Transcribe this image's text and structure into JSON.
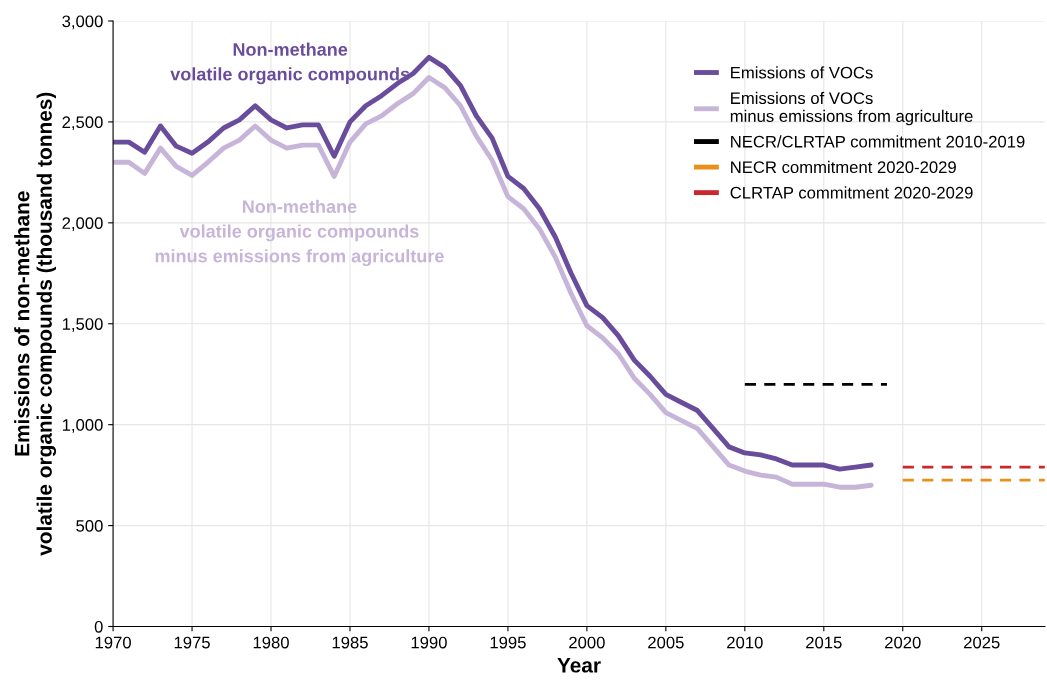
{
  "chart_data": {
    "type": "line",
    "xlabel": "Year",
    "ylabel": "Emissions of non-methane\nvolatile organic compounds (thousand tonnes)",
    "x": [
      1970,
      1971,
      1972,
      1973,
      1974,
      1975,
      1976,
      1977,
      1978,
      1979,
      1980,
      1981,
      1982,
      1983,
      1984,
      1985,
      1986,
      1987,
      1988,
      1989,
      1990,
      1991,
      1992,
      1993,
      1994,
      1995,
      1996,
      1997,
      1998,
      1999,
      2000,
      2001,
      2002,
      2003,
      2004,
      2005,
      2006,
      2007,
      2008,
      2009,
      2010,
      2011,
      2012,
      2013,
      2014,
      2015,
      2016,
      2017,
      2018
    ],
    "series": [
      {
        "name": "Emissions of VOCs",
        "color": "#6a4c9c",
        "values": [
          2400,
          2400,
          2350,
          2480,
          2380,
          2345,
          2400,
          2470,
          2510,
          2580,
          2510,
          2470,
          2485,
          2485,
          2330,
          2500,
          2580,
          2630,
          2690,
          2740,
          2820,
          2770,
          2680,
          2530,
          2420,
          2230,
          2170,
          2070,
          1930,
          1750,
          1590,
          1530,
          1440,
          1320,
          1240,
          1150,
          1110,
          1070,
          980,
          890,
          860,
          850,
          830,
          800,
          800,
          800,
          780,
          790,
          800
        ]
      },
      {
        "name": "Emissions of VOCs\nminus emissions from agriculture",
        "color": "#c7b5d9",
        "values": [
          2300,
          2300,
          2245,
          2370,
          2280,
          2235,
          2300,
          2370,
          2410,
          2480,
          2410,
          2370,
          2385,
          2385,
          2230,
          2400,
          2490,
          2530,
          2590,
          2640,
          2720,
          2670,
          2580,
          2430,
          2310,
          2130,
          2070,
          1970,
          1830,
          1650,
          1490,
          1430,
          1350,
          1230,
          1150,
          1060,
          1020,
          980,
          890,
          800,
          770,
          750,
          740,
          705,
          705,
          705,
          690,
          690,
          700
        ]
      },
      {
        "name": "NECR/CLRTAP commitment 2010-2019",
        "color": "#000000",
        "line_style": "dashed",
        "x": [
          2010,
          2019
        ],
        "values": [
          1200,
          1200
        ]
      },
      {
        "name": "NECR commitment 2020-2029",
        "color": "#e8901a",
        "line_style": "dashed",
        "x": [
          2020,
          2029
        ],
        "values": [
          725,
          725
        ]
      },
      {
        "name": "CLRTAP commitment 2020-2029",
        "color": "#c8282e",
        "line_style": "dashed",
        "x": [
          2020,
          2029
        ],
        "values": [
          790,
          790
        ]
      }
    ],
    "annotations": [
      "Non-methane\nvolatile organic compounds",
      "Non-methane\nvolatile organic compounds\nminus emissions from agriculture"
    ],
    "xlim": [
      1970,
      2029
    ],
    "ylim": [
      0,
      3000
    ],
    "xticks": [
      1970,
      1975,
      1980,
      1985,
      1990,
      1995,
      2000,
      2005,
      2010,
      2015,
      2020,
      2025
    ],
    "yticks": [
      0,
      500,
      {
        "value": 1000,
        "label": "1,000"
      },
      {
        "value": 1500,
        "label": "1,500"
      },
      {
        "value": 2000,
        "label": "2,000"
      },
      {
        "value": 2500,
        "label": "2,500"
      },
      {
        "value": 3000,
        "label": "3,000"
      }
    ],
    "grid": true,
    "legend": "top right",
    "line_style": "solid",
    "marker": "none"
  }
}
